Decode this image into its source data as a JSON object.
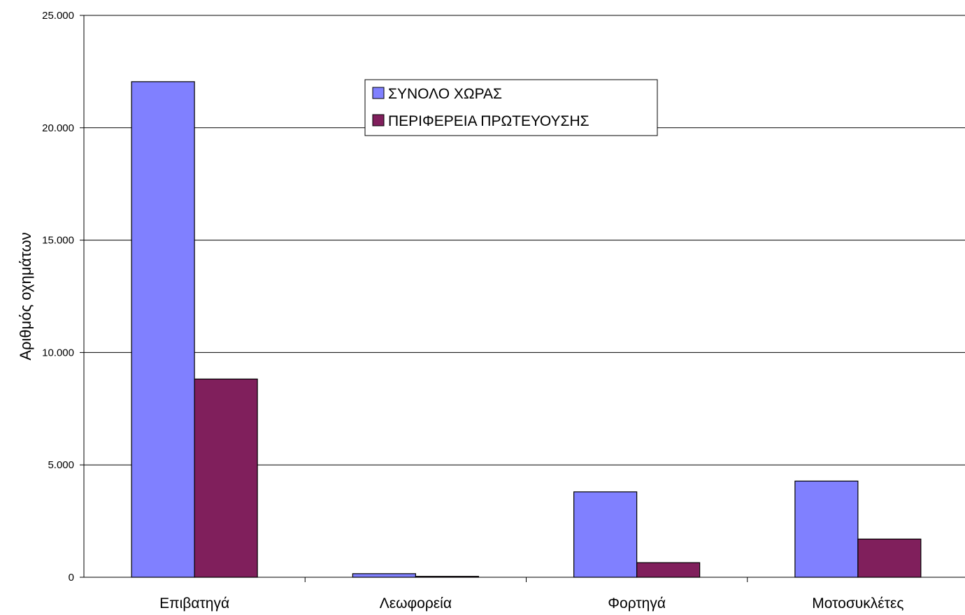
{
  "chart_data": {
    "type": "bar",
    "title": "",
    "xlabel": "",
    "ylabel": "Αριθμός οχημάτων",
    "categories": [
      "Επιβατηγά",
      "Λεωφορεία",
      "Φορτηγά",
      "Μοτοσυκλέτες"
    ],
    "series": [
      {
        "name": "ΣΥΝΟΛΟ ΧΩΡΑΣ",
        "color": "#8080ff",
        "values": [
          22050,
          160,
          3800,
          4280
        ]
      },
      {
        "name": "ΠΕΡΙΦΕΡΕΙΑ ΠΡΩΤΕΥΟΥΣΗΣ",
        "color": "#801f5c",
        "values": [
          8820,
          40,
          650,
          1700
        ]
      }
    ],
    "ylim": [
      0,
      25000
    ],
    "yticks": [
      0,
      5000,
      10000,
      15000,
      20000,
      25000
    ],
    "ytick_labels": [
      "0",
      "5.000",
      "10.000",
      "15.000",
      "20.000",
      "25.000"
    ],
    "grid": true,
    "legend_position": "top-center"
  }
}
